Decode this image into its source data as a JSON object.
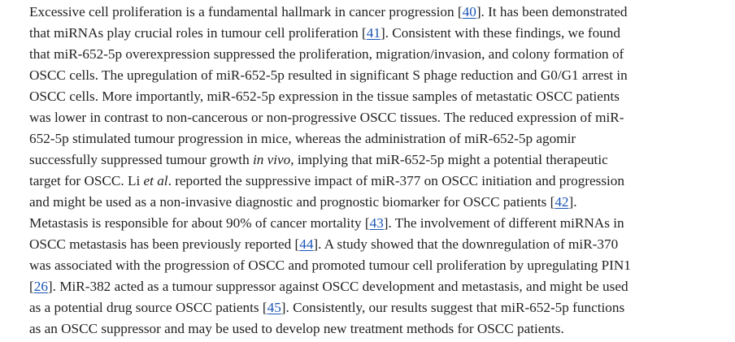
{
  "paragraph": {
    "lines": [
      [
        {
          "t": "Excessive cell proliferation is a fundamental hallmark in cancer progression ["
        },
        {
          "ref": "40"
        },
        {
          "t": "]. It has been demonstrated"
        }
      ],
      [
        {
          "t": "that miRNAs play crucial roles in tumour cell proliferation ["
        },
        {
          "ref": "41"
        },
        {
          "t": "]. Consistent with these findings, we found"
        }
      ],
      [
        {
          "t": "that miR-652-5p overexpression suppressed the proliferation, migration/invasion, and colony formation of"
        }
      ],
      [
        {
          "t": "OSCC cells. The upregulation of miR-652-5p resulted in significant S phage reduction and G0/G1 arrest in"
        }
      ],
      [
        {
          "t": "OSCC cells. More importantly, miR-652-5p expression in the tissue samples of metastatic OSCC patients"
        }
      ],
      [
        {
          "t": "was lower in contrast to non-cancerous or non-progressive OSCC tissues. The reduced expression of miR-"
        }
      ],
      [
        {
          "t": "652-5p stimulated tumour progression in mice, whereas the administration of miR-652-5p agomir"
        }
      ],
      [
        {
          "t": "successfully suppressed tumour growth "
        },
        {
          "i": "in vivo"
        },
        {
          "t": ", implying that miR-652-5p might a potential therapeutic"
        }
      ],
      [
        {
          "t": "target for OSCC. Li "
        },
        {
          "i": "et al"
        },
        {
          "t": ". reported the suppressive impact of miR-377 on OSCC initiation and progression"
        }
      ],
      [
        {
          "t": "and might be used as a non-invasive diagnostic and prognostic biomarker for OSCC patients ["
        },
        {
          "ref": "42"
        },
        {
          "t": "]."
        }
      ],
      [
        {
          "t": "Metastasis is responsible for about 90% of cancer mortality ["
        },
        {
          "ref": "43"
        },
        {
          "t": "]. The involvement of different miRNAs in"
        }
      ],
      [
        {
          "t": "OSCC metastasis has been previously reported ["
        },
        {
          "ref": "44"
        },
        {
          "t": "]. A study showed that the downregulation of miR-370"
        }
      ],
      [
        {
          "t": "was associated with the progression of OSCC and promoted tumour cell proliferation by upregulating PIN1"
        }
      ],
      [
        {
          "t": "["
        },
        {
          "ref": "26"
        },
        {
          "t": "]. MiR-382 acted as a tumour suppressor against OSCC development and metastasis, and might be used"
        }
      ],
      [
        {
          "t": "as a potential drug source OSCC patients ["
        },
        {
          "ref": "45"
        },
        {
          "t": "]. Consistently, our results suggest that miR-652-5p functions"
        }
      ],
      [
        {
          "t": "as an OSCC suppressor and may be used to develop new treatment methods for OSCC patients."
        }
      ]
    ]
  }
}
